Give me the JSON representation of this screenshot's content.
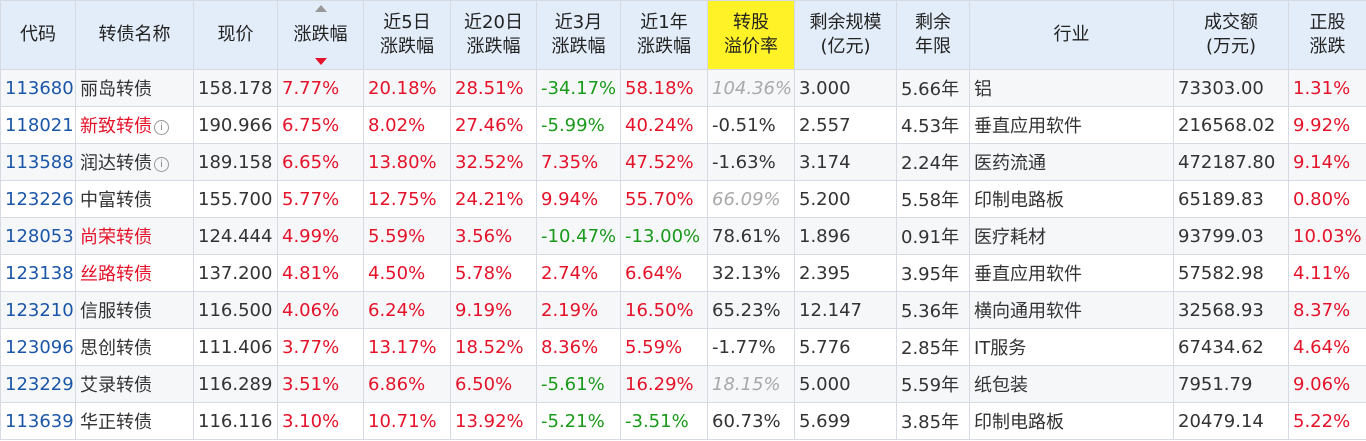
{
  "colors": {
    "header_bg": "#e3edf9",
    "highlight_header": "#fff227",
    "up": "#e4132a",
    "down": "#1a9a1a",
    "code": "#1b56a8",
    "muted": "#a9a9a9"
  },
  "columns": [
    {
      "l1": "代码",
      "l2": ""
    },
    {
      "l1": "转债名称",
      "l2": ""
    },
    {
      "l1": "现价",
      "l2": ""
    },
    {
      "l1": "涨跌幅",
      "l2": ""
    },
    {
      "l1": "近5日",
      "l2": "涨跌幅"
    },
    {
      "l1": "近20日",
      "l2": "涨跌幅"
    },
    {
      "l1": "近3月",
      "l2": "涨跌幅"
    },
    {
      "l1": "近1年",
      "l2": "涨跌幅"
    },
    {
      "l1": "转股",
      "l2": "溢价率"
    },
    {
      "l1": "剩余规模",
      "l2": "(亿元)"
    },
    {
      "l1": "剩余",
      "l2": "年限"
    },
    {
      "l1": "行业",
      "l2": ""
    },
    {
      "l1": "成交额",
      "l2": "(万元)"
    },
    {
      "l1": "正股",
      "l2": "涨跌"
    }
  ],
  "rows": [
    {
      "code": "113680",
      "name": "丽岛转债",
      "name_red": false,
      "info": false,
      "price": "158.178",
      "chg": "7.77%",
      "d5": "20.18%",
      "d20": "28.51%",
      "m3": "-34.17%",
      "y1": "58.18%",
      "premium": "104.36%",
      "premium_muted": true,
      "scale": "3.000",
      "years": "5.66年",
      "industry": "铝",
      "turnover": "73303.00",
      "stock_chg": "1.31%"
    },
    {
      "code": "118021",
      "name": "新致转债",
      "name_red": true,
      "info": true,
      "price": "190.966",
      "chg": "6.75%",
      "d5": "8.02%",
      "d20": "27.46%",
      "m3": "-5.99%",
      "y1": "40.24%",
      "premium": "-0.51%",
      "premium_muted": false,
      "scale": "2.557",
      "years": "4.53年",
      "industry": "垂直应用软件",
      "turnover": "216568.02",
      "stock_chg": "9.92%"
    },
    {
      "code": "113588",
      "name": "润达转债",
      "name_red": false,
      "info": true,
      "price": "189.158",
      "chg": "6.65%",
      "d5": "13.80%",
      "d20": "32.52%",
      "m3": "7.35%",
      "y1": "47.52%",
      "premium": "-1.63%",
      "premium_muted": false,
      "scale": "3.174",
      "years": "2.24年",
      "industry": "医药流通",
      "turnover": "472187.80",
      "stock_chg": "9.14%"
    },
    {
      "code": "123226",
      "name": "中富转债",
      "name_red": false,
      "info": false,
      "price": "155.700",
      "chg": "5.77%",
      "d5": "12.75%",
      "d20": "24.21%",
      "m3": "9.94%",
      "y1": "55.70%",
      "premium": "66.09%",
      "premium_muted": true,
      "scale": "5.200",
      "years": "5.58年",
      "industry": "印制电路板",
      "turnover": "65189.83",
      "stock_chg": "0.80%"
    },
    {
      "code": "128053",
      "name": "尚荣转债",
      "name_red": true,
      "info": false,
      "price": "124.444",
      "chg": "4.99%",
      "d5": "5.59%",
      "d20": "3.56%",
      "m3": "-10.47%",
      "y1": "-13.00%",
      "premium": "78.61%",
      "premium_muted": false,
      "scale": "1.896",
      "years": "0.91年",
      "industry": "医疗耗材",
      "turnover": "93799.03",
      "stock_chg": "10.03%"
    },
    {
      "code": "123138",
      "name": "丝路转债",
      "name_red": true,
      "info": false,
      "price": "137.200",
      "chg": "4.81%",
      "d5": "4.50%",
      "d20": "5.78%",
      "m3": "2.74%",
      "y1": "6.64%",
      "premium": "32.13%",
      "premium_muted": false,
      "scale": "2.395",
      "years": "3.95年",
      "industry": "垂直应用软件",
      "turnover": "57582.98",
      "stock_chg": "4.11%"
    },
    {
      "code": "123210",
      "name": "信服转债",
      "name_red": false,
      "info": false,
      "price": "116.500",
      "chg": "4.06%",
      "d5": "6.24%",
      "d20": "9.19%",
      "m3": "2.19%",
      "y1": "16.50%",
      "premium": "65.23%",
      "premium_muted": false,
      "scale": "12.147",
      "years": "5.36年",
      "industry": "横向通用软件",
      "turnover": "32568.93",
      "stock_chg": "8.37%"
    },
    {
      "code": "123096",
      "name": "思创转债",
      "name_red": false,
      "info": false,
      "price": "111.406",
      "chg": "3.77%",
      "d5": "13.17%",
      "d20": "18.52%",
      "m3": "8.36%",
      "y1": "5.59%",
      "premium": "-1.77%",
      "premium_muted": false,
      "scale": "5.776",
      "years": "2.85年",
      "industry": "IT服务",
      "turnover": "67434.62",
      "stock_chg": "4.64%"
    },
    {
      "code": "123229",
      "name": "艾录转债",
      "name_red": false,
      "info": false,
      "price": "116.289",
      "chg": "3.51%",
      "d5": "6.86%",
      "d20": "6.50%",
      "m3": "-5.61%",
      "y1": "16.29%",
      "premium": "18.15%",
      "premium_muted": true,
      "scale": "5.000",
      "years": "5.59年",
      "industry": "纸包装",
      "turnover": "7951.79",
      "stock_chg": "9.06%"
    },
    {
      "code": "113639",
      "name": "华正转债",
      "name_red": false,
      "info": false,
      "price": "116.116",
      "chg": "3.10%",
      "d5": "10.71%",
      "d20": "13.92%",
      "m3": "-5.21%",
      "y1": "-3.51%",
      "premium": "60.73%",
      "premium_muted": false,
      "scale": "5.699",
      "years": "3.85年",
      "industry": "印制电路板",
      "turnover": "20479.14",
      "stock_chg": "5.22%"
    }
  ]
}
